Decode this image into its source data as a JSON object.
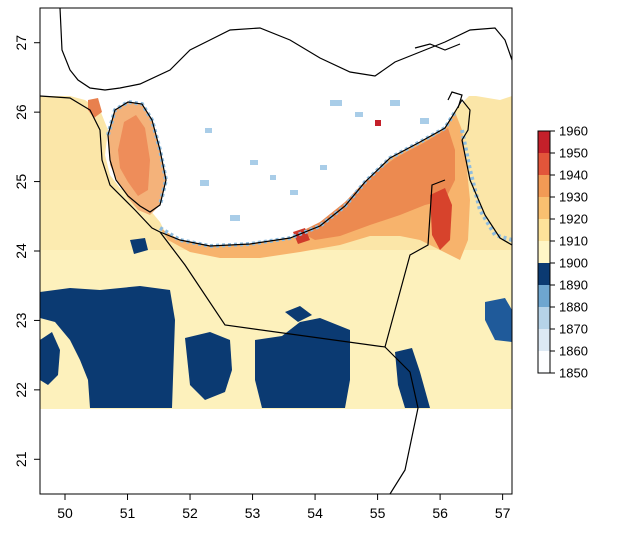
{
  "map": {
    "x_axis": {
      "range": [
        49.6,
        57.15
      ],
      "ticks": [
        50,
        51,
        52,
        53,
        54,
        55,
        56,
        57
      ],
      "labels": [
        "50",
        "51",
        "52",
        "53",
        "54",
        "55",
        "56",
        "57"
      ]
    },
    "y_axis": {
      "range": [
        20.5,
        27.5
      ],
      "ticks": [
        21,
        22,
        23,
        24,
        25,
        26,
        27
      ],
      "labels": [
        "21",
        "22",
        "23",
        "24",
        "25",
        "26",
        "27"
      ]
    },
    "colorbar": {
      "min": 1850,
      "max": 1960,
      "ticks": [
        1850,
        1860,
        1870,
        1880,
        1890,
        1900,
        1910,
        1920,
        1930,
        1940,
        1950,
        1960
      ],
      "labels": [
        "1850",
        "1860",
        "1870",
        "1880",
        "1890",
        "1900",
        "1910",
        "1920",
        "1930",
        "1940",
        "1950",
        "1960"
      ],
      "bands": [
        {
          "from": 1850,
          "to": 1860,
          "color": "#fdfeff"
        },
        {
          "from": 1860,
          "to": 1870,
          "color": "#dde9f4"
        },
        {
          "from": 1870,
          "to": 1880,
          "color": "#b6d3e8"
        },
        {
          "from": 1880,
          "to": 1890,
          "color": "#6ea6d0"
        },
        {
          "from": 1890,
          "to": 1900,
          "color": "#0b3a72"
        },
        {
          "from": 1900,
          "to": 1910,
          "color": "#fff6c6"
        },
        {
          "from": 1910,
          "to": 1920,
          "color": "#fde39a"
        },
        {
          "from": 1920,
          "to": 1930,
          "color": "#f9c070"
        },
        {
          "from": 1930,
          "to": 1940,
          "color": "#f29a55"
        },
        {
          "from": 1940,
          "to": 1950,
          "color": "#e2553a"
        },
        {
          "from": 1950,
          "to": 1960,
          "color": "#c4202a"
        }
      ]
    },
    "colors": {
      "background": "#ffffff",
      "land_light": "#fdf0b8",
      "land_mid": "#fbe2a0",
      "dark_blue": "#0b3a72",
      "orange": "#f2a15c",
      "red": "#d7432c",
      "light_blue": "#9cc4e2",
      "border": "#000000"
    }
  }
}
